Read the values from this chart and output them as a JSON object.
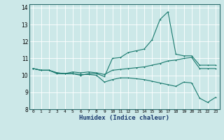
{
  "xlabel": "Humidex (Indice chaleur)",
  "background_color": "#cce8e8",
  "grid_color": "#ffffff",
  "line_color": "#1a7a6e",
  "xlim": [
    -0.5,
    23.5
  ],
  "ylim": [
    8,
    14.2
  ],
  "yticks": [
    8,
    9,
    10,
    11,
    12,
    13,
    14
  ],
  "xticks": [
    0,
    1,
    2,
    3,
    4,
    5,
    6,
    7,
    8,
    9,
    10,
    11,
    12,
    13,
    14,
    15,
    16,
    17,
    18,
    19,
    20,
    21,
    22,
    23
  ],
  "line1_x": [
    0,
    1,
    2,
    3,
    4,
    5,
    6,
    7,
    8,
    9,
    10,
    11,
    12,
    13,
    14,
    15,
    16,
    17,
    18,
    19,
    20,
    21,
    22,
    23
  ],
  "line1_y": [
    10.4,
    10.3,
    10.3,
    10.1,
    10.1,
    10.1,
    10.0,
    10.1,
    10.1,
    9.93,
    11.0,
    11.05,
    11.35,
    11.45,
    11.55,
    12.1,
    13.3,
    13.75,
    11.25,
    11.15,
    11.15,
    10.6,
    10.6,
    10.6
  ],
  "line2_x": [
    0,
    1,
    2,
    3,
    4,
    5,
    6,
    7,
    8,
    9,
    10,
    11,
    12,
    13,
    14,
    15,
    16,
    17,
    18,
    19,
    20,
    21,
    22,
    23
  ],
  "line2_y": [
    10.4,
    10.3,
    10.3,
    10.15,
    10.1,
    10.2,
    10.15,
    10.2,
    10.15,
    10.05,
    10.3,
    10.35,
    10.4,
    10.45,
    10.5,
    10.6,
    10.7,
    10.85,
    10.9,
    11.0,
    11.05,
    10.4,
    10.4,
    10.4
  ],
  "line3_x": [
    0,
    1,
    2,
    3,
    4,
    5,
    6,
    7,
    8,
    9,
    10,
    11,
    12,
    13,
    14,
    15,
    16,
    17,
    18,
    19,
    20,
    21,
    22,
    23
  ],
  "line3_y": [
    10.4,
    10.3,
    10.3,
    10.15,
    10.1,
    10.1,
    10.05,
    10.05,
    10.0,
    9.6,
    9.75,
    9.85,
    9.85,
    9.8,
    9.75,
    9.65,
    9.55,
    9.45,
    9.35,
    9.6,
    9.55,
    8.65,
    8.4,
    8.7
  ]
}
